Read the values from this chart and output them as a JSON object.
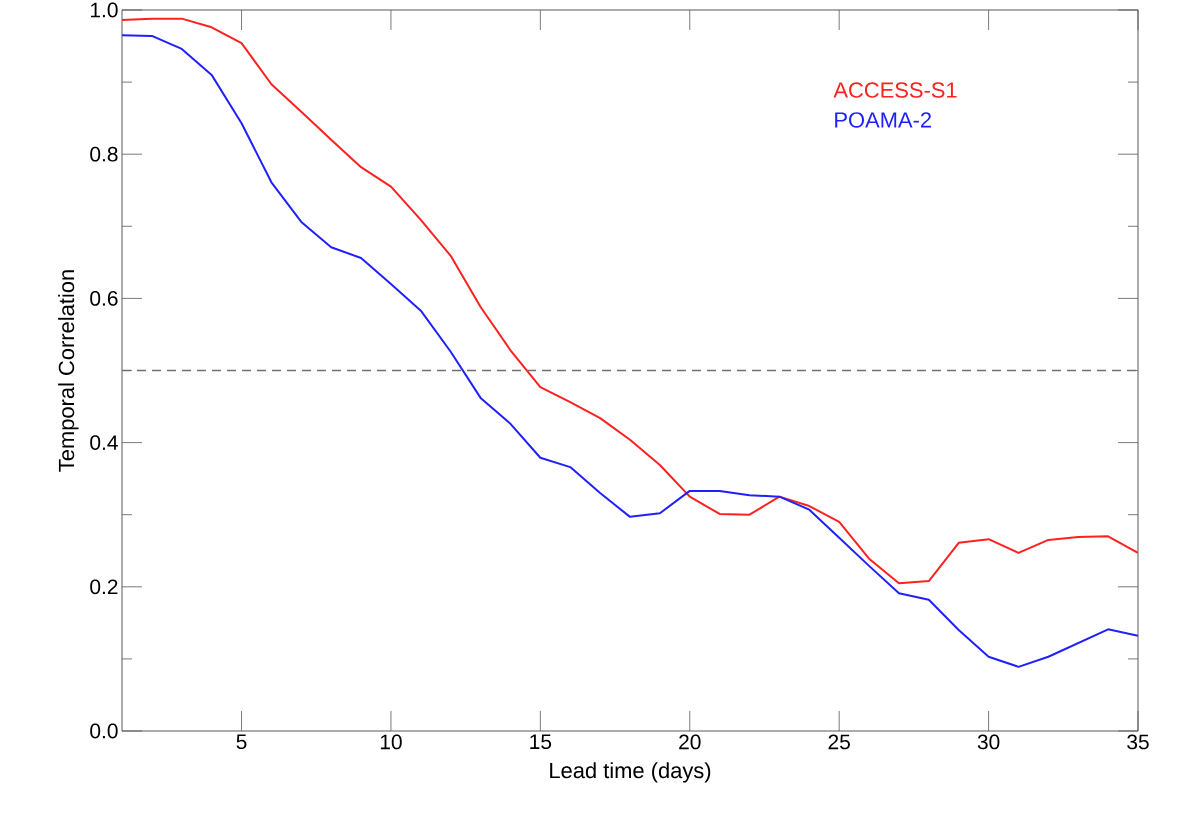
{
  "chart_data": {
    "type": "line",
    "xlabel": "Lead time (days)",
    "ylabel": "Temporal Correlation",
    "x": [
      1,
      2,
      3,
      4,
      5,
      6,
      7,
      8,
      9,
      10,
      11,
      12,
      13,
      14,
      15,
      16,
      17,
      18,
      19,
      20,
      21,
      22,
      23,
      24,
      25,
      26,
      27,
      28,
      29,
      30,
      31,
      32,
      33,
      34,
      35
    ],
    "series": [
      {
        "name": "ACCESS-S1",
        "color": "#ff2020",
        "values": [
          0.986,
          0.988,
          0.988,
          0.976,
          0.954,
          0.897,
          0.859,
          0.82,
          0.782,
          0.755,
          0.709,
          0.659,
          0.588,
          0.528,
          0.477,
          0.456,
          0.434,
          0.404,
          0.369,
          0.325,
          0.301,
          0.3,
          0.325,
          0.312,
          0.29,
          0.239,
          0.205,
          0.208,
          0.261,
          0.266,
          0.247,
          0.265,
          0.269,
          0.27,
          0.247
        ]
      },
      {
        "name": "POAMA-2",
        "color": "#2020ff",
        "values": [
          0.965,
          0.964,
          0.946,
          0.91,
          0.843,
          0.761,
          0.706,
          0.671,
          0.656,
          0.62,
          0.583,
          0.526,
          0.462,
          0.426,
          0.379,
          0.366,
          0.33,
          0.297,
          0.302,
          0.333,
          0.333,
          0.327,
          0.325,
          0.307,
          0.268,
          0.229,
          0.191,
          0.182,
          0.14,
          0.103,
          0.089,
          0.103,
          0.122,
          0.141,
          0.132
        ]
      }
    ],
    "xlim": [
      1,
      35
    ],
    "xticks": [
      5,
      10,
      15,
      20,
      25,
      30,
      35
    ],
    "ylim": [
      0,
      1
    ],
    "yticks": [
      {
        "value": 0,
        "label": "0.0"
      },
      {
        "value": 0.1,
        "label": null
      },
      {
        "value": 0.2,
        "label": "0.2"
      },
      {
        "value": 0.3,
        "label": null
      },
      {
        "value": 0.4,
        "label": "0.4"
      },
      {
        "value": 0.5,
        "label": null
      },
      {
        "value": 0.6,
        "label": "0.6"
      },
      {
        "value": 0.7,
        "label": null
      },
      {
        "value": 0.8,
        "label": "0.8"
      },
      {
        "value": 0.9,
        "label": null
      },
      {
        "value": 1,
        "label": "1.0"
      }
    ],
    "ref_lines": [
      {
        "axis": "y",
        "value": 0.5,
        "color": "#707070",
        "line_style": "dashed"
      }
    ],
    "grid": false,
    "legend": "top right",
    "marker": "none",
    "line_style": "solid"
  }
}
